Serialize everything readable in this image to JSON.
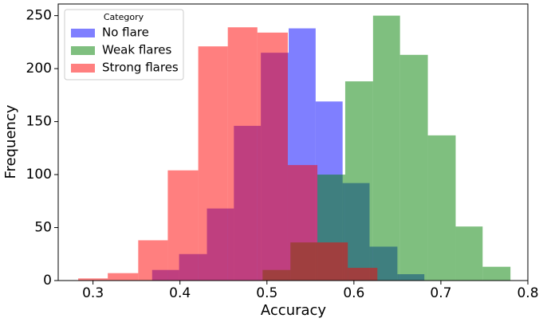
{
  "chart_data": {
    "type": "histogram",
    "xlabel": "Accuracy",
    "ylabel": "Frequency",
    "xlim": [
      0.26,
      0.8
    ],
    "ylim": [
      0,
      261
    ],
    "xticks": [
      0.3,
      0.4,
      0.5,
      0.6,
      0.7,
      0.8
    ],
    "yticks": [
      0,
      50,
      100,
      150,
      200,
      250
    ],
    "legend_title": "Category",
    "legend_loc": "upper left",
    "opacity": 0.5,
    "series": [
      {
        "name": "No flare",
        "color": "#0000ff",
        "bins": [
          0.368,
          0.399,
          0.431,
          0.462,
          0.493,
          0.525,
          0.556,
          0.587,
          0.618,
          0.65,
          0.681
        ],
        "values": [
          10,
          25,
          68,
          146,
          215,
          238,
          169,
          92,
          32,
          6
        ]
      },
      {
        "name": "Weak flares",
        "color": "#008000",
        "bins": [
          0.495,
          0.527,
          0.558,
          0.59,
          0.622,
          0.653,
          0.685,
          0.717,
          0.748,
          0.78
        ],
        "values": [
          10,
          36,
          100,
          188,
          250,
          213,
          137,
          51,
          13
        ]
      },
      {
        "name": "Strong flares",
        "color": "#ff0000",
        "bins": [
          0.283,
          0.317,
          0.352,
          0.386,
          0.421,
          0.455,
          0.489,
          0.524,
          0.558,
          0.593,
          0.627
        ],
        "values": [
          2,
          7,
          38,
          104,
          221,
          239,
          234,
          109,
          36,
          12
        ]
      }
    ]
  }
}
